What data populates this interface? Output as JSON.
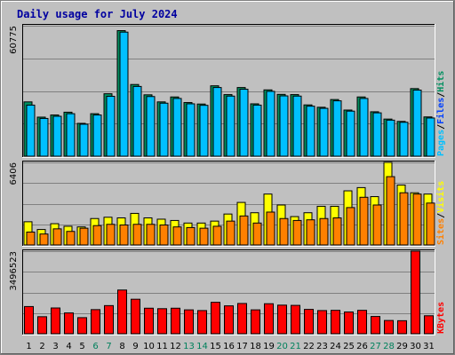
{
  "chart_data": [
    {
      "type": "bar",
      "title": "Daily usage for July 2024",
      "categories": [
        "1",
        "2",
        "3",
        "4",
        "5",
        "6",
        "7",
        "8",
        "9",
        "10",
        "11",
        "12",
        "13",
        "14",
        "15",
        "16",
        "17",
        "18",
        "19",
        "20",
        "21",
        "22",
        "23",
        "24",
        "25",
        "26",
        "27",
        "28",
        "29",
        "30",
        "31"
      ],
      "weekend_days": [
        "6",
        "7",
        "13",
        "14",
        "20",
        "21",
        "27",
        "28"
      ],
      "ylim": [
        0,
        60775
      ],
      "ytick": "60775",
      "grid": true,
      "legend": [
        {
          "label": "Hits",
          "color": "#009060"
        },
        {
          "label": "Files",
          "color": "#0040ff"
        },
        {
          "label": "Pages",
          "color": "#00c0ff"
        }
      ],
      "series": [
        {
          "name": "Hits",
          "color": "#009060",
          "values": [
            25300,
            18200,
            19200,
            20500,
            15300,
            19800,
            29100,
            58500,
            33400,
            28600,
            25300,
            27600,
            25000,
            24300,
            32800,
            28700,
            32000,
            24400,
            30900,
            28800,
            28700,
            23900,
            22800,
            26400,
            21500,
            27600,
            20700,
            17300,
            16200,
            31500,
            18300
          ]
        },
        {
          "name": "Files",
          "color": "#0040ff",
          "values": [
            23800,
            17600,
            18600,
            19800,
            14900,
            19200,
            27900,
            57800,
            32500,
            27800,
            24700,
            26900,
            24400,
            23700,
            32000,
            28000,
            31200,
            23800,
            30200,
            28100,
            28000,
            23300,
            22300,
            25800,
            21000,
            26900,
            20200,
            16800,
            15800,
            30800,
            17800
          ]
        },
        {
          "name": "Pages",
          "color": "#00c0ff",
          "values": [
            23800,
            17600,
            18600,
            19800,
            14900,
            19200,
            27900,
            57800,
            32500,
            27800,
            24700,
            26900,
            24400,
            23700,
            32000,
            28000,
            31200,
            23800,
            30200,
            28100,
            28000,
            23300,
            22300,
            25800,
            21000,
            26900,
            20200,
            16800,
            15800,
            30800,
            17800
          ]
        }
      ]
    },
    {
      "type": "bar",
      "ylim": [
        0,
        6406
      ],
      "ytick": "6406",
      "grid": true,
      "legend": [
        {
          "label": "Visits",
          "color": "#ffff00"
        },
        {
          "label": "Sites",
          "color": "#ff8000"
        }
      ],
      "series": [
        {
          "name": "Visits",
          "color": "#ffff00",
          "values": [
            1800,
            1200,
            1650,
            1450,
            1400,
            2050,
            2150,
            2100,
            2450,
            2100,
            2000,
            1900,
            1700,
            1700,
            1850,
            2400,
            3300,
            2500,
            3950,
            3100,
            2200,
            2500,
            3000,
            3000,
            4200,
            4450,
            3750,
            6406,
            4650,
            4050,
            3950
          ]
        },
        {
          "name": "Sites",
          "color": "#ff8000",
          "values": [
            1000,
            850,
            1250,
            1050,
            1300,
            1500,
            1600,
            1550,
            1600,
            1600,
            1550,
            1400,
            1350,
            1300,
            1450,
            1850,
            2250,
            1700,
            2550,
            2050,
            1900,
            1950,
            2050,
            2100,
            2900,
            3700,
            3100,
            5300,
            4050,
            3950,
            3250
          ]
        }
      ]
    },
    {
      "type": "bar",
      "ylim": [
        0,
        3496523
      ],
      "ytick": "3496523",
      "grid": true,
      "legend": [
        {
          "label": "KBytes",
          "color": "#ff0000"
        }
      ],
      "series": [
        {
          "name": "KBytes",
          "color": "#ff0000",
          "values": [
            1150000,
            720000,
            1090000,
            880000,
            680000,
            1020000,
            1190000,
            1850000,
            1460000,
            1080000,
            1060000,
            1080000,
            1010000,
            980000,
            1330000,
            1180000,
            1280000,
            1010000,
            1270000,
            1210000,
            1200000,
            1030000,
            980000,
            990000,
            920000,
            990000,
            730000,
            560000,
            550000,
            3496523,
            760000
          ]
        }
      ]
    }
  ]
}
